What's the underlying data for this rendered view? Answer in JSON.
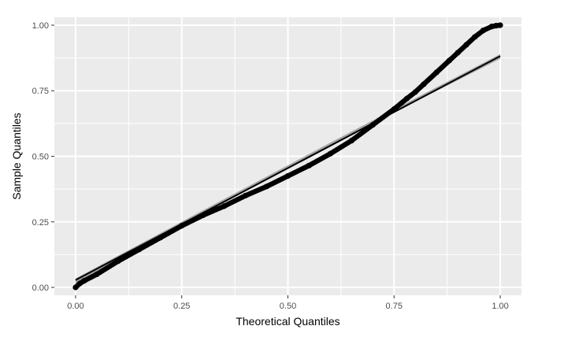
{
  "chart_data": {
    "type": "scatter",
    "title": "",
    "xlabel": "Theoretical Quantiles",
    "ylabel": "Sample Quantiles",
    "xlim": [
      -0.05,
      1.05
    ],
    "ylim": [
      -0.03,
      1.03
    ],
    "x_ticks": [
      0,
      0.25,
      0.5,
      0.75,
      1
    ],
    "x_tick_labels": [
      "0.00",
      "0.25",
      "0.50",
      "0.75",
      "1.00"
    ],
    "y_ticks": [
      0,
      0.25,
      0.5,
      0.75,
      1
    ],
    "y_tick_labels": [
      "0.00",
      "0.25",
      "0.50",
      "0.75",
      "1.00"
    ],
    "grid": true,
    "legend": "none",
    "colors": {
      "panel": "#ebebeb",
      "grid": "#ffffff",
      "points": "#000000",
      "reference_line": "#000000",
      "confidence_band": "#999999"
    },
    "reference_line": {
      "x": [
        0,
        1
      ],
      "y": [
        0.028,
        0.882
      ]
    },
    "confidence_band": {
      "x": [
        0,
        0.1,
        0.2,
        0.3,
        0.4,
        0.5,
        0.6,
        0.7,
        0.8,
        0.9,
        1.0
      ],
      "lower": [
        0.012,
        0.103,
        0.193,
        0.281,
        0.367,
        0.452,
        0.538,
        0.624,
        0.708,
        0.79,
        0.872
      ],
      "upper": [
        0.034,
        0.121,
        0.207,
        0.294,
        0.38,
        0.466,
        0.552,
        0.637,
        0.721,
        0.805,
        0.89
      ]
    },
    "series": [
      {
        "x": [
          0,
          0.01,
          0.02,
          0.05,
          0.1,
          0.15,
          0.2,
          0.25,
          0.3,
          0.35,
          0.4,
          0.45,
          0.5,
          0.55,
          0.6,
          0.65,
          0.7,
          0.75,
          0.78,
          0.8,
          0.82,
          0.85,
          0.88,
          0.9,
          0.92,
          0.94,
          0.96,
          0.98,
          0.99,
          1.0
        ],
        "y": [
          0.0,
          0.015,
          0.025,
          0.05,
          0.1,
          0.145,
          0.19,
          0.235,
          0.275,
          0.31,
          0.35,
          0.385,
          0.425,
          0.465,
          0.51,
          0.56,
          0.62,
          0.68,
          0.72,
          0.745,
          0.775,
          0.82,
          0.865,
          0.895,
          0.925,
          0.955,
          0.98,
          0.995,
          0.998,
          1.0
        ]
      }
    ]
  }
}
